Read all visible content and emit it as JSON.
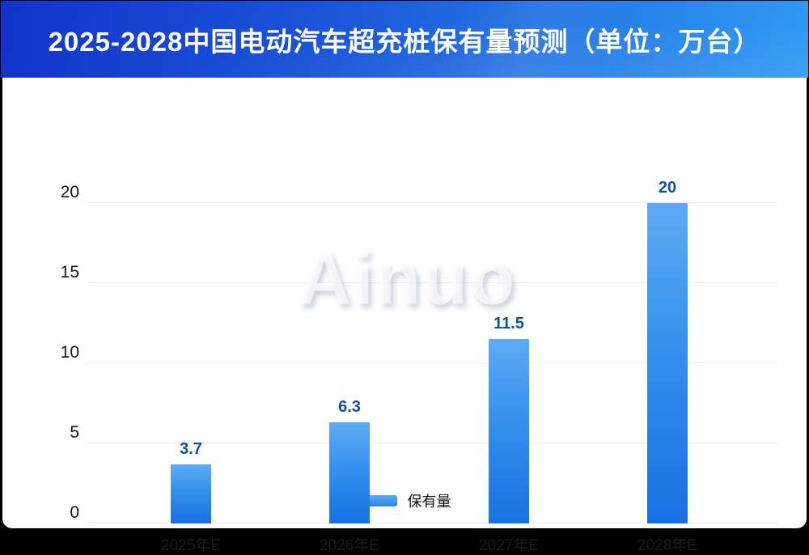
{
  "header": {
    "title": "2025-2028中国电动汽车超充桩保有量预测（单位：万台）"
  },
  "watermark": {
    "text": "Ainuo"
  },
  "legend": {
    "items": [
      {
        "label": "保有量"
      }
    ]
  },
  "colors": {
    "banner_gradient_left": "#1233cb",
    "banner_gradient_right": "#2e9bf2",
    "bar_gradient_top": "#5dabf4",
    "bar_gradient_bottom": "#1771e2",
    "value_label": "#0d52a8",
    "axis_text": "#141414",
    "gridline": "#ececec",
    "card_background": "#ffffff"
  },
  "chart_data": {
    "type": "bar",
    "title": "2025-2028中国电动汽车超充桩保有量预测（单位：万台）",
    "unit": "万台",
    "categories": [
      "2025年E",
      "2026年E",
      "2027年E",
      "2028年E"
    ],
    "series": [
      {
        "name": "保有量",
        "values": [
          3.7,
          6.3,
          11.5,
          20
        ]
      }
    ],
    "xlabel": "",
    "ylabel": "",
    "ylim": [
      0,
      20
    ],
    "yticks": [
      0,
      5,
      10,
      15,
      20
    ],
    "grid": true,
    "legend_position": "bottom"
  }
}
